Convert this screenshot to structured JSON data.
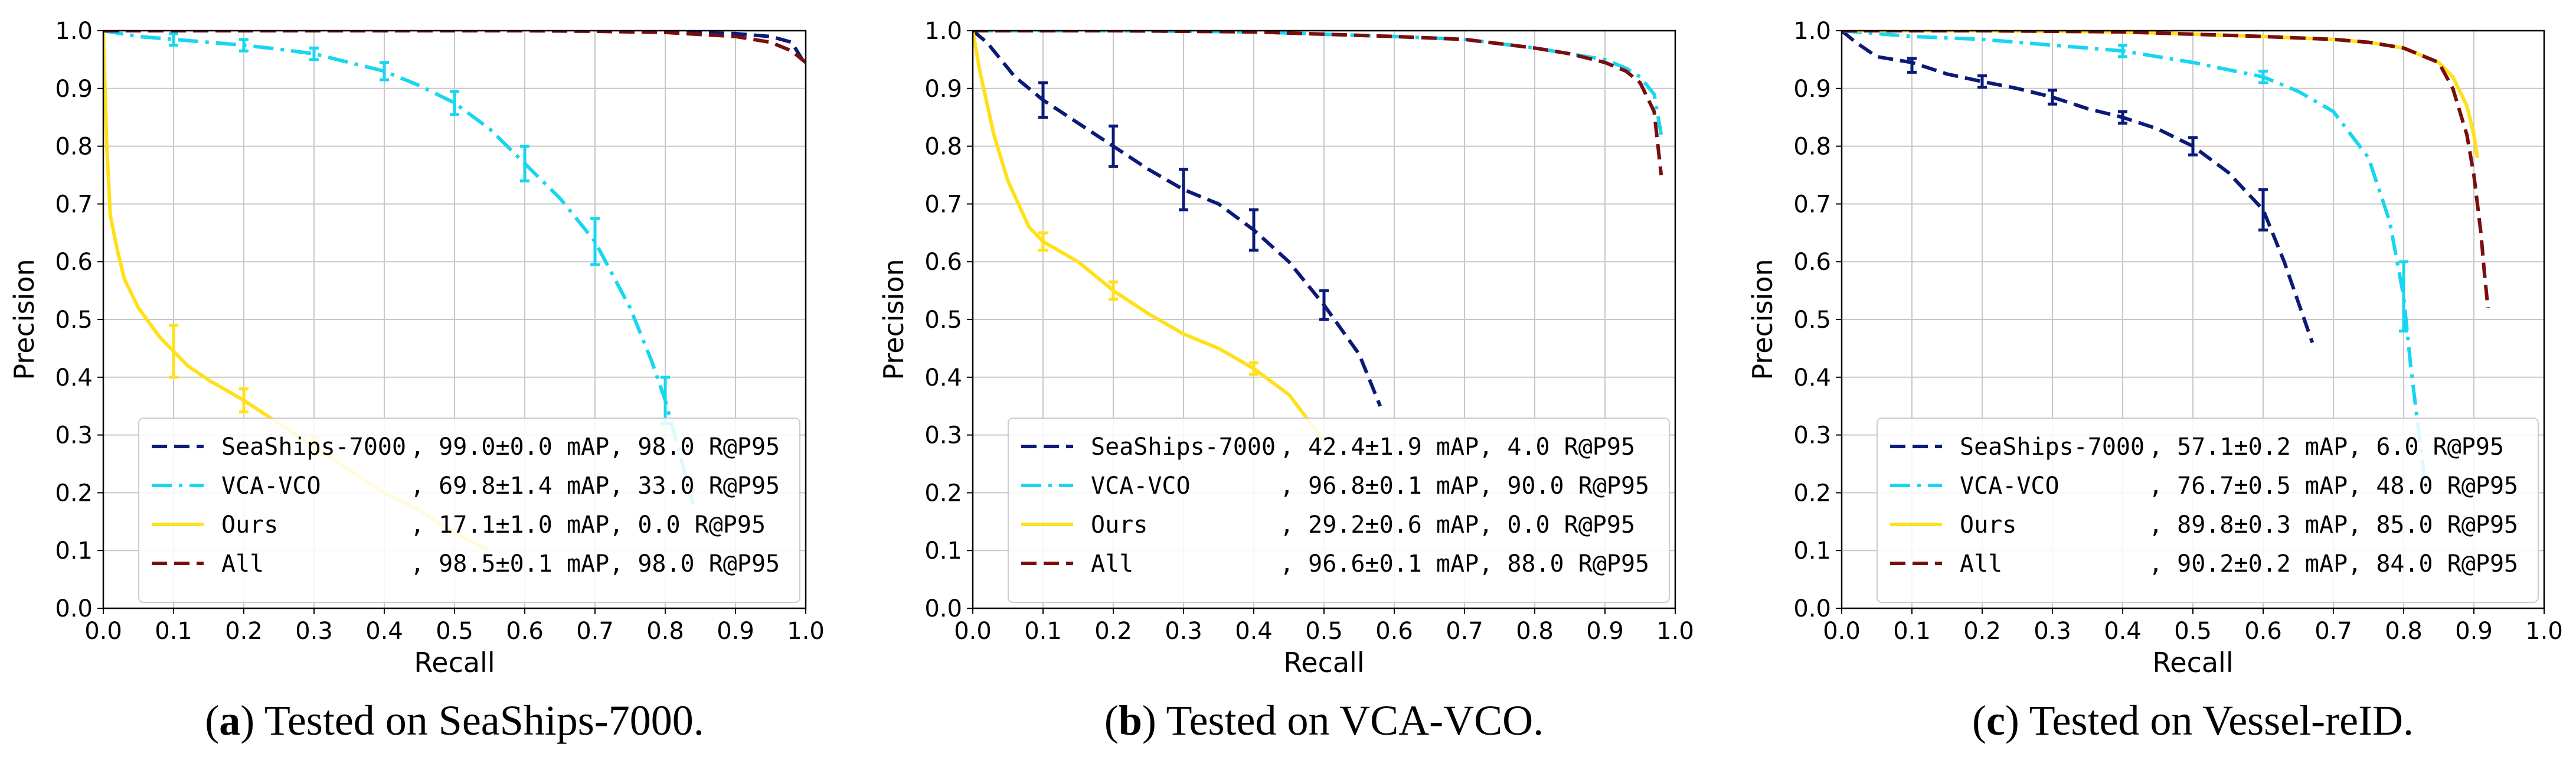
{
  "colors": {
    "seaships": "#0b1a78",
    "vca": "#18d6f0",
    "ours": "#ffe01a",
    "all": "#7a0d0d"
  },
  "chart_data": [
    {
      "type": "line",
      "caption_letter": "a",
      "caption_text": "Tested on SeaShips-7000.",
      "xlabel": "Recall",
      "ylabel": "Precision",
      "xlim": [
        0,
        1
      ],
      "ylim": [
        0,
        1
      ],
      "ticks": [
        "0.0",
        "0.1",
        "0.2",
        "0.3",
        "0.4",
        "0.5",
        "0.6",
        "0.7",
        "0.8",
        "0.9",
        "1.0"
      ],
      "grid": true,
      "legend_position": "lower-right",
      "series": [
        {
          "name": "SeaShips-7000",
          "stats": ", 99.0±0.0 mAP, 98.0 R@P95",
          "color_key": "seaships",
          "style": "dashed",
          "points": [
            [
              0,
              1.0
            ],
            [
              0.1,
              1.0
            ],
            [
              0.2,
              1.0
            ],
            [
              0.3,
              1.0
            ],
            [
              0.4,
              1.0
            ],
            [
              0.5,
              1.0
            ],
            [
              0.6,
              1.0
            ],
            [
              0.7,
              1.0
            ],
            [
              0.8,
              0.998
            ],
            [
              0.9,
              0.995
            ],
            [
              0.95,
              0.99
            ],
            [
              0.98,
              0.98
            ],
            [
              0.99,
              0.96
            ],
            [
              1.0,
              0.94
            ]
          ]
        },
        {
          "name": "VCA-VCO",
          "stats": ", 69.8±1.4 mAP, 33.0 R@P95",
          "color_key": "vca",
          "style": "dashdot",
          "points": [
            [
              0,
              1.0
            ],
            [
              0.05,
              0.99
            ],
            [
              0.1,
              0.985
            ],
            [
              0.15,
              0.98
            ],
            [
              0.2,
              0.975
            ],
            [
              0.25,
              0.968
            ],
            [
              0.3,
              0.96
            ],
            [
              0.35,
              0.945
            ],
            [
              0.4,
              0.93
            ],
            [
              0.45,
              0.905
            ],
            [
              0.5,
              0.875
            ],
            [
              0.55,
              0.83
            ],
            [
              0.6,
              0.77
            ],
            [
              0.65,
              0.71
            ],
            [
              0.7,
              0.635
            ],
            [
              0.75,
              0.52
            ],
            [
              0.78,
              0.43
            ],
            [
              0.8,
              0.36
            ],
            [
              0.82,
              0.27
            ],
            [
              0.84,
              0.18
            ]
          ],
          "errors": [
            [
              0.1,
              0.985,
              0.01
            ],
            [
              0.2,
              0.975,
              0.01
            ],
            [
              0.3,
              0.96,
              0.01
            ],
            [
              0.4,
              0.93,
              0.015
            ],
            [
              0.5,
              0.875,
              0.02
            ],
            [
              0.6,
              0.77,
              0.03
            ],
            [
              0.7,
              0.635,
              0.04
            ],
            [
              0.8,
              0.36,
              0.04
            ]
          ]
        },
        {
          "name": "Ours",
          "stats": ", 17.1±1.0 mAP, 0.0 R@P95",
          "color_key": "ours",
          "style": "solid",
          "points": [
            [
              0,
              1.0
            ],
            [
              0.005,
              0.8
            ],
            [
              0.01,
              0.68
            ],
            [
              0.02,
              0.62
            ],
            [
              0.03,
              0.57
            ],
            [
              0.05,
              0.52
            ],
            [
              0.08,
              0.47
            ],
            [
              0.1,
              0.445
            ],
            [
              0.12,
              0.42
            ],
            [
              0.15,
              0.395
            ],
            [
              0.2,
              0.36
            ],
            [
              0.25,
              0.32
            ],
            [
              0.3,
              0.28
            ],
            [
              0.35,
              0.24
            ],
            [
              0.4,
              0.2
            ],
            [
              0.45,
              0.17
            ],
            [
              0.5,
              0.13
            ],
            [
              0.55,
              0.1
            ]
          ],
          "errors": [
            [
              0.1,
              0.445,
              0.045
            ],
            [
              0.2,
              0.36,
              0.02
            ],
            [
              0.3,
              0.28,
              0.015
            ]
          ]
        },
        {
          "name": "All",
          "stats": ", 98.5±0.1 mAP, 98.0 R@P95",
          "color_key": "all",
          "style": "dashed",
          "points": [
            [
              0,
              1.0
            ],
            [
              0.2,
              1.0
            ],
            [
              0.4,
              1.0
            ],
            [
              0.6,
              1.0
            ],
            [
              0.7,
              0.999
            ],
            [
              0.8,
              0.997
            ],
            [
              0.9,
              0.99
            ],
            [
              0.95,
              0.98
            ],
            [
              0.98,
              0.965
            ],
            [
              1.0,
              0.945
            ]
          ]
        }
      ]
    },
    {
      "type": "line",
      "caption_letter": "b",
      "caption_text": "Tested on VCA-VCO.",
      "xlabel": "Recall",
      "ylabel": "Precision",
      "xlim": [
        0,
        1
      ],
      "ylim": [
        0,
        1
      ],
      "ticks": [
        "0.0",
        "0.1",
        "0.2",
        "0.3",
        "0.4",
        "0.5",
        "0.6",
        "0.7",
        "0.8",
        "0.9",
        "1.0"
      ],
      "grid": true,
      "legend_position": "lower-right",
      "series": [
        {
          "name": "SeaShips-7000",
          "stats": ", 42.4±1.9 mAP, 4.0 R@P95",
          "color_key": "seaships",
          "style": "dashed",
          "points": [
            [
              0,
              1.0
            ],
            [
              0.02,
              0.98
            ],
            [
              0.04,
              0.95
            ],
            [
              0.06,
              0.92
            ],
            [
              0.1,
              0.88
            ],
            [
              0.15,
              0.84
            ],
            [
              0.2,
              0.8
            ],
            [
              0.25,
              0.76
            ],
            [
              0.3,
              0.725
            ],
            [
              0.35,
              0.7
            ],
            [
              0.4,
              0.655
            ],
            [
              0.45,
              0.6
            ],
            [
              0.5,
              0.525
            ],
            [
              0.55,
              0.44
            ],
            [
              0.58,
              0.35
            ]
          ],
          "errors": [
            [
              0.1,
              0.88,
              0.03
            ],
            [
              0.2,
              0.8,
              0.035
            ],
            [
              0.3,
              0.725,
              0.035
            ],
            [
              0.4,
              0.655,
              0.035
            ],
            [
              0.5,
              0.525,
              0.025
            ]
          ]
        },
        {
          "name": "VCA-VCO",
          "stats": ", 96.8±0.1 mAP, 90.0 R@P95",
          "color_key": "vca",
          "style": "dashdot",
          "points": [
            [
              0,
              1.0
            ],
            [
              0.2,
              1.0
            ],
            [
              0.4,
              0.998
            ],
            [
              0.6,
              0.99
            ],
            [
              0.7,
              0.985
            ],
            [
              0.8,
              0.97
            ],
            [
              0.85,
              0.96
            ],
            [
              0.9,
              0.95
            ],
            [
              0.93,
              0.935
            ],
            [
              0.95,
              0.92
            ],
            [
              0.97,
              0.89
            ],
            [
              0.98,
              0.82
            ]
          ]
        },
        {
          "name": "Ours",
          "stats": ", 29.2±0.6 mAP, 0.0 R@P95",
          "color_key": "ours",
          "style": "solid",
          "points": [
            [
              0,
              1.0
            ],
            [
              0.01,
              0.93
            ],
            [
              0.03,
              0.82
            ],
            [
              0.05,
              0.74
            ],
            [
              0.08,
              0.66
            ],
            [
              0.1,
              0.635
            ],
            [
              0.15,
              0.6
            ],
            [
              0.2,
              0.55
            ],
            [
              0.25,
              0.51
            ],
            [
              0.3,
              0.475
            ],
            [
              0.35,
              0.45
            ],
            [
              0.4,
              0.415
            ],
            [
              0.45,
              0.37
            ],
            [
              0.5,
              0.29
            ]
          ],
          "errors": [
            [
              0.1,
              0.635,
              0.015
            ],
            [
              0.2,
              0.55,
              0.015
            ],
            [
              0.4,
              0.415,
              0.01
            ]
          ]
        },
        {
          "name": "All",
          "stats": ", 96.6±0.1 mAP, 88.0 R@P95",
          "color_key": "all",
          "style": "dashed",
          "points": [
            [
              0,
              1.0
            ],
            [
              0.2,
              1.0
            ],
            [
              0.4,
              0.998
            ],
            [
              0.6,
              0.99
            ],
            [
              0.7,
              0.985
            ],
            [
              0.8,
              0.97
            ],
            [
              0.85,
              0.96
            ],
            [
              0.9,
              0.945
            ],
            [
              0.93,
              0.93
            ],
            [
              0.95,
              0.91
            ],
            [
              0.97,
              0.86
            ],
            [
              0.98,
              0.75
            ]
          ]
        }
      ]
    },
    {
      "type": "line",
      "caption_letter": "c",
      "caption_text": "Tested on Vessel-reID.",
      "xlabel": "Recall",
      "ylabel": "Precision",
      "xlim": [
        0,
        1
      ],
      "ylim": [
        0,
        1
      ],
      "ticks": [
        "0.0",
        "0.1",
        "0.2",
        "0.3",
        "0.4",
        "0.5",
        "0.6",
        "0.7",
        "0.8",
        "0.9",
        "1.0"
      ],
      "grid": true,
      "legend_position": "lower-right",
      "series": [
        {
          "name": "SeaShips-7000",
          "stats": ", 57.1±0.2 mAP, 6.0 R@P95",
          "color_key": "seaships",
          "style": "dashed",
          "points": [
            [
              0,
              1.0
            ],
            [
              0.02,
              0.98
            ],
            [
              0.05,
              0.955
            ],
            [
              0.1,
              0.945
            ],
            [
              0.15,
              0.925
            ],
            [
              0.2,
              0.912
            ],
            [
              0.25,
              0.9
            ],
            [
              0.3,
              0.885
            ],
            [
              0.35,
              0.865
            ],
            [
              0.4,
              0.85
            ],
            [
              0.45,
              0.83
            ],
            [
              0.5,
              0.8
            ],
            [
              0.55,
              0.755
            ],
            [
              0.6,
              0.69
            ],
            [
              0.63,
              0.6
            ],
            [
              0.65,
              0.53
            ],
            [
              0.67,
              0.46
            ]
          ],
          "errors": [
            [
              0.1,
              0.94,
              0.012
            ],
            [
              0.2,
              0.912,
              0.01
            ],
            [
              0.3,
              0.885,
              0.012
            ],
            [
              0.4,
              0.85,
              0.01
            ],
            [
              0.5,
              0.8,
              0.015
            ],
            [
              0.6,
              0.69,
              0.035
            ]
          ]
        },
        {
          "name": "VCA-VCO",
          "stats": ", 76.7±0.5 mAP, 48.0 R@P95",
          "color_key": "vca",
          "style": "dashdot",
          "points": [
            [
              0,
              1.0
            ],
            [
              0.1,
              0.99
            ],
            [
              0.2,
              0.985
            ],
            [
              0.3,
              0.975
            ],
            [
              0.4,
              0.965
            ],
            [
              0.5,
              0.945
            ],
            [
              0.6,
              0.92
            ],
            [
              0.65,
              0.895
            ],
            [
              0.7,
              0.86
            ],
            [
              0.75,
              0.78
            ],
            [
              0.78,
              0.67
            ],
            [
              0.8,
              0.54
            ],
            [
              0.81,
              0.42
            ],
            [
              0.82,
              0.32
            ],
            [
              0.83,
              0.22
            ]
          ],
          "errors": [
            [
              0.4,
              0.965,
              0.01
            ],
            [
              0.6,
              0.92,
              0.01
            ],
            [
              0.8,
              0.54,
              0.06
            ]
          ]
        },
        {
          "name": "Ours",
          "stats": ", 89.8±0.3 mAP, 85.0 R@P95",
          "color_key": "ours",
          "style": "solid",
          "points": [
            [
              0,
              1.0
            ],
            [
              0.2,
              1.0
            ],
            [
              0.4,
              0.998
            ],
            [
              0.6,
              0.99
            ],
            [
              0.7,
              0.985
            ],
            [
              0.75,
              0.98
            ],
            [
              0.8,
              0.97
            ],
            [
              0.85,
              0.945
            ],
            [
              0.87,
              0.92
            ],
            [
              0.89,
              0.87
            ],
            [
              0.9,
              0.82
            ],
            [
              0.905,
              0.78
            ]
          ]
        },
        {
          "name": "All",
          "stats": ", 90.2±0.2 mAP, 84.0 R@P95",
          "color_key": "all",
          "style": "dashed",
          "points": [
            [
              0,
              1.0
            ],
            [
              0.2,
              1.0
            ],
            [
              0.4,
              0.998
            ],
            [
              0.6,
              0.99
            ],
            [
              0.7,
              0.985
            ],
            [
              0.75,
              0.98
            ],
            [
              0.8,
              0.97
            ],
            [
              0.85,
              0.945
            ],
            [
              0.87,
              0.9
            ],
            [
              0.89,
              0.82
            ],
            [
              0.9,
              0.75
            ],
            [
              0.91,
              0.65
            ],
            [
              0.915,
              0.58
            ],
            [
              0.92,
              0.52
            ]
          ]
        }
      ]
    }
  ]
}
